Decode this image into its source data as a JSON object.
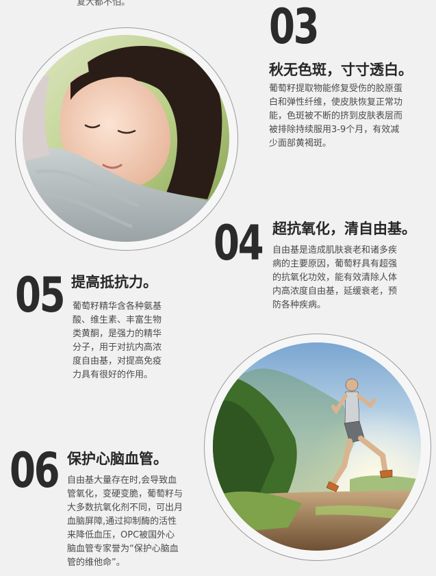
{
  "top_fragment": "复大都不怕。",
  "sections": [
    {
      "number": "03",
      "title": "秋无色斑，寸寸透白。",
      "lines": [
        "葡萄籽提取物能修复受伤的胶原蛋",
        "白和弹性纤维，使皮肤恢复正常功",
        "能，色斑被不断的挤到皮肤表层而",
        "被排除持续服用3-9个月，有效减",
        "少面部黄褐斑。"
      ]
    },
    {
      "number": "04",
      "title": "超抗氧化，清自由基。",
      "lines": [
        "自由基是造成肌肤衰老和诸多疾",
        "病的主要原因，葡萄籽具有超强",
        "的抗氧化功效，能有效清除人体",
        "内高浓度自由基，延缓衰老，预",
        "防各种疾病。"
      ]
    },
    {
      "number": "05",
      "title": "提高抵抗力。",
      "lines": [
        "葡萄籽精华含各种氨基",
        "酸、维生素、丰富生物",
        "类黄酮，是强力的精华",
        "分子，用于对抗内高浓",
        "度自由基，对提高免疫",
        "力具有很好的作用。"
      ]
    },
    {
      "number": "06",
      "title": "保护心脑血管。",
      "lines": [
        "自由基大量存在时,会导致血",
        "管氧化，变硬变脆，葡萄籽与",
        "大多数抗氧化剂不同，可出月",
        "血脑屏障,通过抑制酶的活性",
        "来降低血压，OPC被国外心",
        "脑血管专家誉为“保护心脑血",
        "管的维他命”。"
      ]
    }
  ],
  "images": {
    "woman": "sleeping-woman-photo",
    "runner": "running-woman-photo"
  }
}
